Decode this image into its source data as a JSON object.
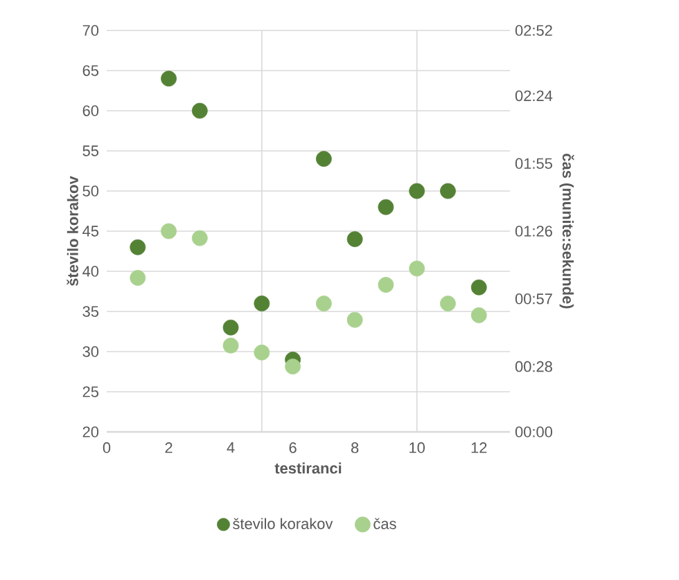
{
  "chart_data": {
    "type": "scatter",
    "xlabel": "testiranci",
    "ylabel": "število korakov",
    "y2label": "čas (munite:sekunde)",
    "xlim": [
      0,
      13
    ],
    "xticks": [
      0,
      2,
      4,
      6,
      8,
      10,
      12
    ],
    "ylim": [
      20,
      70
    ],
    "yticks": [
      20,
      25,
      30,
      35,
      40,
      45,
      50,
      55,
      60,
      65,
      70
    ],
    "y2lim": [
      0,
      172
    ],
    "y2ticks": [
      {
        "value": 0,
        "label": "00:00"
      },
      {
        "value": 28,
        "label": "00:28"
      },
      {
        "value": 57,
        "label": "00:57"
      },
      {
        "value": 86,
        "label": "01:26"
      },
      {
        "value": 115,
        "label": "01:55"
      },
      {
        "value": 144,
        "label": "02:24"
      },
      {
        "value": 172,
        "label": "02:52"
      }
    ],
    "x": [
      1,
      2,
      3,
      4,
      5,
      6,
      7,
      8,
      9,
      10,
      11,
      12
    ],
    "series": [
      {
        "name": "število korakov",
        "color": "#548235",
        "values": [
          43,
          64,
          60,
          33,
          36,
          29,
          54,
          44,
          48,
          50,
          50,
          38
        ]
      },
      {
        "name": "čas",
        "color": "#a9d18e",
        "axis": "y2",
        "values": [
          66,
          86,
          83,
          37,
          34,
          28,
          55,
          48,
          63,
          70,
          55,
          50
        ]
      }
    ],
    "ref_lines": [
      {
        "axis": "x",
        "value": 5,
        "color": "#d9d9d9"
      },
      {
        "axis": "x",
        "value": 10,
        "color": "#d9d9d9"
      }
    ],
    "grid": "y",
    "legend": "bottom",
    "marker": "circle"
  }
}
